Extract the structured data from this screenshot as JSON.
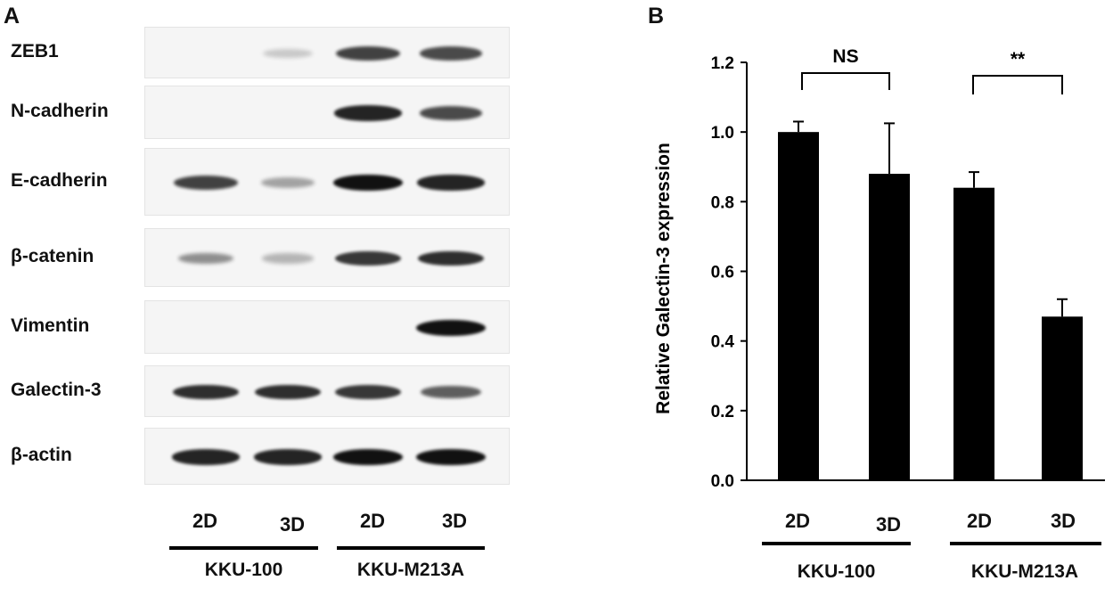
{
  "panel_a": {
    "letter": "A",
    "proteins": [
      {
        "name": "ZEB1",
        "bands": [
          0.0,
          0.05,
          0.75,
          0.7
        ]
      },
      {
        "name": "N-cadherin",
        "bands": [
          0.0,
          0.0,
          0.9,
          0.7
        ]
      },
      {
        "name": "E-cadherin",
        "bands": [
          0.75,
          0.25,
          1.0,
          0.9
        ]
      },
      {
        "name": "β-catenin",
        "bands": [
          0.35,
          0.15,
          0.8,
          0.85
        ]
      },
      {
        "name": "Vimentin",
        "bands": [
          0.0,
          0.0,
          0.0,
          1.0
        ]
      },
      {
        "name": "Galectin-3",
        "bands": [
          0.85,
          0.85,
          0.8,
          0.6
        ]
      },
      {
        "name": "β-actin",
        "bands": [
          0.9,
          0.9,
          1.0,
          1.0
        ]
      }
    ],
    "lanes": [
      "2D",
      "3D",
      "2D",
      "3D"
    ],
    "groups": [
      "KKU-100",
      "KKU-M213A"
    ]
  },
  "panel_b": {
    "letter": "B",
    "lanes": [
      "2D",
      "3D",
      "2D",
      "3D"
    ],
    "groups": [
      "KKU-100",
      "KKU-M213A"
    ],
    "significance": [
      "NS",
      "**"
    ]
  },
  "chart_data": {
    "type": "bar",
    "categories": [
      "KKU-100 2D",
      "KKU-100 3D",
      "KKU-M213A 2D",
      "KKU-M213A 3D"
    ],
    "values": [
      1.0,
      0.88,
      0.84,
      0.47
    ],
    "errors": [
      0.03,
      0.145,
      0.045,
      0.05
    ],
    "title": "",
    "xlabel": "",
    "ylabel": "Relative Galectin-3 expression",
    "ylim": [
      0,
      1.2
    ],
    "yticks": [
      "0.0",
      "0.2",
      "0.4",
      "0.6",
      "0.8",
      "1.0",
      "1.2"
    ],
    "bar_color": "#000000",
    "grid": false
  }
}
